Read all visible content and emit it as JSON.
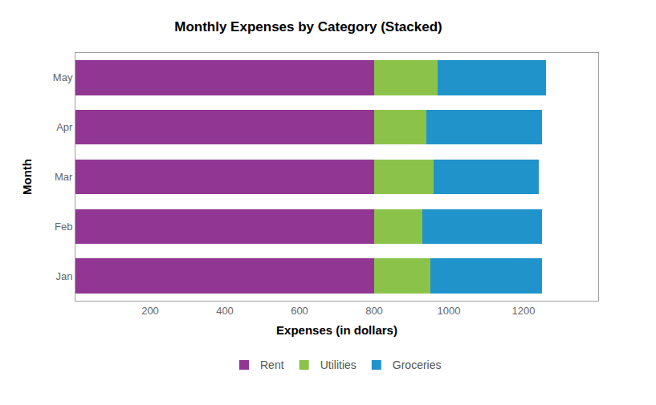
{
  "chart_data": {
    "type": "bar",
    "title": "Monthly Expenses by Category (Stacked)",
    "x_label": "Expenses (in dollars)",
    "y_label": "Month",
    "orientation": "horizontal",
    "stacked": true,
    "grid": false,
    "legend": "bottom",
    "categories": [
      "Jan",
      "Feb",
      "Mar",
      "Apr",
      "May"
    ],
    "series": [
      {
        "name": "Rent",
        "color": "#923693",
        "values": [
          800,
          800,
          800,
          800,
          800
        ]
      },
      {
        "name": "Utilities",
        "color": "#8bc34a",
        "values": [
          150,
          130,
          160,
          140,
          170
        ]
      },
      {
        "name": "Groceries",
        "color": "#2193cb",
        "values": [
          300,
          320,
          280,
          310,
          290
        ]
      }
    ],
    "xlim": [
      0,
      1400
    ],
    "xticks": [
      200,
      400,
      600,
      800,
      1000,
      1200
    ]
  }
}
